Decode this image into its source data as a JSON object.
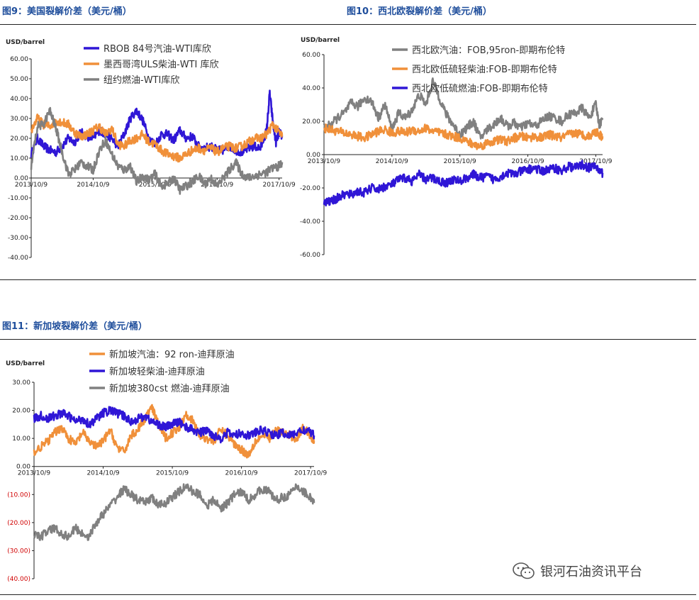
{
  "figures": {
    "fig9_title": "图9：美国裂解价差（美元/桶）",
    "fig10_title": "图10：西北欧裂解价差（美元/桶）",
    "fig11_title": "图11：新加坡裂解价差（美元/桶）"
  },
  "watermark": {
    "text": "银河石油资讯平台",
    "icon": "wechat-icon"
  },
  "chart_data": [
    {
      "id": "us",
      "type": "line",
      "title": "图9：美国裂解价差（美元/桶）",
      "ylabel": "USD/barrel",
      "ylim": [
        -40,
        60
      ],
      "yticks": [
        "60.00",
        "50.00",
        "40.00",
        "30.00",
        "20.00",
        "10.00",
        "0.00",
        "-10.00",
        "-20.00",
        "-30.00",
        "-40.00"
      ],
      "xlim": [
        0,
        4.05
      ],
      "xticks": [
        {
          "x": 0,
          "label": "2013/10/9"
        },
        {
          "x": 1,
          "label": "2014/10/9"
        },
        {
          "x": 2,
          "label": "2015/10/9"
        },
        {
          "x": 3,
          "label": "2016/10/9"
        },
        {
          "x": 4,
          "label": "2017/10/9"
        }
      ],
      "series": [
        {
          "name": "RBOB 84号汽油-WTI库欣",
          "color": "#2f16d6",
          "x": [
            0,
            0.1,
            0.2,
            0.3,
            0.4,
            0.5,
            0.6,
            0.7,
            0.8,
            0.9,
            1.0,
            1.1,
            1.2,
            1.3,
            1.4,
            1.5,
            1.6,
            1.7,
            1.8,
            1.9,
            2.0,
            2.1,
            2.2,
            2.3,
            2.4,
            2.5,
            2.6,
            2.7,
            2.8,
            2.9,
            3.0,
            3.1,
            3.2,
            3.3,
            3.4,
            3.5,
            3.6,
            3.7,
            3.8,
            3.85,
            3.9,
            3.95,
            4.0,
            4.05
          ],
          "y": [
            12,
            20,
            16,
            14,
            13,
            16,
            20,
            18,
            23,
            21,
            20,
            24,
            22,
            20,
            16,
            22,
            30,
            34,
            29,
            20,
            17,
            22,
            22,
            19,
            24,
            20,
            21,
            16,
            15,
            16,
            14,
            14,
            16,
            14,
            13,
            15,
            16,
            15,
            24,
            43,
            28,
            18,
            23,
            21
          ]
        },
        {
          "name": "墨西哥湾ULS柴油-WTI 库欣",
          "color": "#f0903a",
          "x": [
            0,
            0.1,
            0.2,
            0.3,
            0.4,
            0.5,
            0.6,
            0.7,
            0.8,
            0.9,
            1.0,
            1.1,
            1.2,
            1.3,
            1.4,
            1.5,
            1.6,
            1.7,
            1.8,
            1.9,
            2.0,
            2.1,
            2.2,
            2.3,
            2.4,
            2.5,
            2.6,
            2.7,
            2.8,
            2.9,
            3.0,
            3.1,
            3.2,
            3.3,
            3.4,
            3.5,
            3.6,
            3.7,
            3.8,
            3.9,
            4.0,
            4.05
          ],
          "y": [
            24,
            30,
            27,
            26,
            29,
            28,
            27,
            23,
            21,
            22,
            24,
            26,
            22,
            25,
            17,
            16,
            19,
            20,
            22,
            18,
            17,
            14,
            12,
            11,
            10,
            12,
            14,
            15,
            14,
            15,
            13,
            15,
            16,
            15,
            16,
            18,
            20,
            20,
            22,
            27,
            23,
            21
          ]
        },
        {
          "name": "纽约燃油-WTI库欣",
          "color": "#808080",
          "x": [
            0,
            0.1,
            0.2,
            0.3,
            0.4,
            0.5,
            0.6,
            0.7,
            0.8,
            0.9,
            1.0,
            1.1,
            1.2,
            1.3,
            1.4,
            1.5,
            1.6,
            1.7,
            1.8,
            1.9,
            2.0,
            2.1,
            2.2,
            2.3,
            2.4,
            2.5,
            2.6,
            2.7,
            2.8,
            2.9,
            3.0,
            3.1,
            3.2,
            3.3,
            3.4,
            3.5,
            3.6,
            3.7,
            3.8,
            3.9,
            4.0,
            4.05
          ],
          "y": [
            6,
            26,
            27,
            34,
            25,
            13,
            2,
            4,
            8,
            6,
            4,
            14,
            19,
            12,
            6,
            4,
            6,
            -2,
            1,
            -1,
            2,
            -4,
            -3,
            0,
            -6,
            -4,
            -2,
            1,
            -3,
            0,
            -4,
            0,
            4,
            8,
            2,
            0,
            1,
            2,
            3,
            5,
            6,
            8
          ]
        }
      ]
    },
    {
      "id": "nwe",
      "type": "line",
      "title": "图10：西北欧裂解价差（美元/桶）",
      "ylabel": "USD/barrel",
      "ylim": [
        -60,
        60
      ],
      "yticks": [
        "60.00",
        "40.00",
        "20.00",
        "0.00",
        "-20.00",
        "-40.00",
        "-60.00"
      ],
      "xlim": [
        0,
        4.1
      ],
      "xticks": [
        {
          "x": 0,
          "label": "2013/10/9"
        },
        {
          "x": 1,
          "label": "2014/10/9"
        },
        {
          "x": 2,
          "label": "2015/10/9"
        },
        {
          "x": 3,
          "label": "2016/10/9"
        },
        {
          "x": 4,
          "label": "2017/10/9"
        }
      ],
      "series": [
        {
          "name": "西北欧汽油：FOB,95ron-即期布伦特",
          "color": "#808080",
          "x": [
            0,
            0.1,
            0.2,
            0.3,
            0.4,
            0.5,
            0.6,
            0.7,
            0.8,
            0.9,
            1.0,
            1.1,
            1.2,
            1.3,
            1.4,
            1.5,
            1.6,
            1.7,
            1.8,
            1.9,
            2.0,
            2.1,
            2.2,
            2.3,
            2.4,
            2.5,
            2.6,
            2.7,
            2.8,
            2.9,
            3.0,
            3.1,
            3.2,
            3.3,
            3.4,
            3.5,
            3.6,
            3.7,
            3.8,
            3.9,
            4.0,
            4.05,
            4.1
          ],
          "y": [
            16,
            18,
            22,
            25,
            31,
            29,
            34,
            32,
            22,
            30,
            15,
            25,
            22,
            27,
            36,
            30,
            44,
            34,
            24,
            18,
            12,
            16,
            20,
            10,
            15,
            18,
            22,
            17,
            19,
            16,
            19,
            17,
            20,
            23,
            22,
            20,
            24,
            25,
            28,
            22,
            30,
            18,
            21
          ]
        },
        {
          "name": "西北欧低硫轻柴油:FOB-即期布伦特",
          "color": "#f0903a",
          "x": [
            0,
            0.1,
            0.2,
            0.3,
            0.4,
            0.5,
            0.6,
            0.7,
            0.8,
            0.9,
            1.0,
            1.1,
            1.2,
            1.3,
            1.4,
            1.5,
            1.6,
            1.7,
            1.8,
            1.9,
            2.0,
            2.1,
            2.2,
            2.3,
            2.4,
            2.5,
            2.6,
            2.7,
            2.8,
            2.9,
            3.0,
            3.1,
            3.2,
            3.3,
            3.4,
            3.5,
            3.6,
            3.7,
            3.8,
            3.9,
            4.0,
            4.05,
            4.1
          ],
          "y": [
            16,
            15,
            14,
            13,
            12,
            11,
            10,
            12,
            14,
            15,
            13,
            14,
            13,
            15,
            14,
            16,
            14,
            13,
            12,
            11,
            10,
            8,
            6,
            5,
            7,
            8,
            9,
            8,
            10,
            11,
            10,
            11,
            10,
            12,
            11,
            10,
            12,
            13,
            12,
            11,
            14,
            12,
            11
          ]
        },
        {
          "name": "西北欧低硫燃油:FOB-即期布伦特",
          "color": "#2f16d6",
          "x": [
            0,
            0.1,
            0.2,
            0.3,
            0.4,
            0.5,
            0.6,
            0.7,
            0.8,
            0.9,
            1.0,
            1.1,
            1.2,
            1.3,
            1.4,
            1.5,
            1.6,
            1.7,
            1.8,
            1.9,
            2.0,
            2.1,
            2.2,
            2.3,
            2.4,
            2.5,
            2.6,
            2.7,
            2.8,
            2.9,
            3.0,
            3.1,
            3.2,
            3.3,
            3.4,
            3.5,
            3.6,
            3.7,
            3.8,
            3.9,
            4.0,
            4.05,
            4.1
          ],
          "y": [
            -29,
            -28,
            -26,
            -24,
            -24,
            -22,
            -23,
            -20,
            -21,
            -19,
            -18,
            -15,
            -14,
            -16,
            -12,
            -15,
            -14,
            -16,
            -17,
            -15,
            -16,
            -14,
            -12,
            -14,
            -13,
            -15,
            -13,
            -11,
            -12,
            -10,
            -9,
            -8,
            -10,
            -9,
            -8,
            -10,
            -7,
            -8,
            -6,
            -8,
            -7,
            -10,
            -11
          ]
        }
      ]
    },
    {
      "id": "sg",
      "type": "line",
      "title": "图11：新加坡裂解价差（美元/桶）",
      "ylabel": "USD/barrel",
      "ylim": [
        -40,
        30
      ],
      "yticks": [
        "30.00",
        "20.00",
        "10.00",
        "0.00",
        "(10.00)",
        "(20.00)",
        "(30.00)",
        "(40.00)"
      ],
      "xlim": [
        0,
        4.05
      ],
      "xticks": [
        {
          "x": 0,
          "label": "2013/10/9"
        },
        {
          "x": 1,
          "label": "2014/10/9"
        },
        {
          "x": 2,
          "label": "2015/10/9"
        },
        {
          "x": 3,
          "label": "2016/10/9"
        },
        {
          "x": 4,
          "label": "2017/10/9"
        }
      ],
      "series": [
        {
          "name": "新加坡汽油：92 ron-迪拜原油",
          "color": "#f0903a",
          "x": [
            0,
            0.1,
            0.2,
            0.3,
            0.4,
            0.5,
            0.6,
            0.7,
            0.8,
            0.9,
            1.0,
            1.1,
            1.2,
            1.3,
            1.4,
            1.5,
            1.6,
            1.7,
            1.8,
            1.9,
            2.0,
            2.1,
            2.2,
            2.3,
            2.4,
            2.5,
            2.6,
            2.7,
            2.8,
            2.9,
            3.0,
            3.1,
            3.2,
            3.3,
            3.4,
            3.5,
            3.6,
            3.7,
            3.8,
            3.9,
            4.0,
            4.05
          ],
          "y": [
            5,
            7,
            9,
            12,
            14,
            10,
            8,
            12,
            9,
            7,
            9,
            13,
            7,
            5,
            11,
            13,
            17,
            21,
            15,
            10,
            12,
            14,
            19,
            16,
            11,
            10,
            9,
            13,
            11,
            8,
            6,
            4,
            9,
            11,
            10,
            13,
            12,
            11,
            10,
            14,
            11,
            9
          ]
        },
        {
          "name": "新加坡轻柴油-迪拜原油",
          "color": "#2f16d6",
          "x": [
            0,
            0.1,
            0.2,
            0.3,
            0.4,
            0.5,
            0.6,
            0.7,
            0.8,
            0.9,
            1.0,
            1.1,
            1.2,
            1.3,
            1.4,
            1.5,
            1.6,
            1.7,
            1.8,
            1.9,
            2.0,
            2.1,
            2.2,
            2.3,
            2.4,
            2.5,
            2.6,
            2.7,
            2.8,
            2.9,
            3.0,
            3.1,
            3.2,
            3.3,
            3.4,
            3.5,
            3.6,
            3.7,
            3.8,
            3.9,
            4.0,
            4.05
          ],
          "y": [
            17,
            18,
            17,
            18,
            19,
            18,
            16,
            17,
            15,
            17,
            19,
            20,
            19,
            18,
            16,
            17,
            18,
            16,
            15,
            14,
            15,
            16,
            14,
            13,
            12,
            13,
            11,
            10,
            12,
            11,
            12,
            11,
            12,
            13,
            12,
            11,
            12,
            11,
            12,
            13,
            12,
            11
          ]
        },
        {
          "name": "新加坡380cst 燃油-迪拜原油",
          "color": "#808080",
          "x": [
            0,
            0.1,
            0.2,
            0.3,
            0.4,
            0.5,
            0.6,
            0.7,
            0.8,
            0.9,
            1.0,
            1.1,
            1.2,
            1.3,
            1.4,
            1.5,
            1.6,
            1.7,
            1.8,
            1.9,
            2.0,
            2.1,
            2.2,
            2.3,
            2.4,
            2.5,
            2.6,
            2.7,
            2.8,
            2.9,
            3.0,
            3.1,
            3.2,
            3.3,
            3.4,
            3.5,
            3.6,
            3.7,
            3.8,
            3.9,
            4.0,
            4.05
          ],
          "y": [
            -24,
            -25,
            -23,
            -22,
            -24,
            -25,
            -22,
            -24,
            -25,
            -20,
            -17,
            -14,
            -11,
            -8,
            -10,
            -12,
            -13,
            -11,
            -14,
            -13,
            -11,
            -9,
            -7,
            -9,
            -10,
            -14,
            -12,
            -15,
            -13,
            -10,
            -9,
            -12,
            -10,
            -8,
            -9,
            -12,
            -11,
            -10,
            -7,
            -9,
            -11,
            -13
          ]
        }
      ]
    }
  ]
}
